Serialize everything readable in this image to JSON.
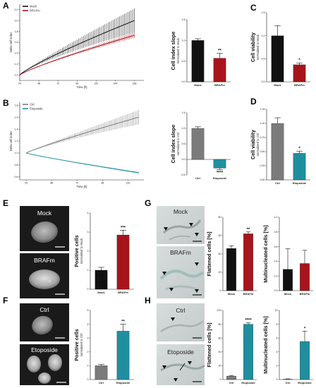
{
  "colors": {
    "black": "#111111",
    "red": "#a8141c",
    "grey": "#7b7b7b",
    "teal": "#1f8fa0"
  },
  "panels": {
    "A": {
      "letter": "A",
      "legend": [
        "Mock",
        "BRAFm"
      ],
      "y_title": "Delta cell index",
      "x_title": "Time [h]",
      "y_ticks": [
        "1.0",
        "1.2",
        "1.4",
        "1.6",
        "1.8",
        "2.0",
        "2.2"
      ],
      "x_ticks": [
        "24",
        "48",
        "72",
        "96",
        "120",
        "144",
        "168"
      ]
    },
    "A_bar": {
      "ylabel": "Cell index slope",
      "ysub": "normalized to Mock",
      "y_ticks": [
        "0.0",
        "0.5",
        "1.0",
        "1.5"
      ],
      "categories": [
        "Mock",
        "BRAFm"
      ],
      "sig": "**"
    },
    "C": {
      "letter": "C",
      "ylabel": "Cell viability",
      "ysub": "normalized to Mock",
      "y_ticks": [
        "0.0",
        "0.5",
        "1.0",
        "1.5"
      ],
      "categories": [
        "Mock",
        "BRAFm"
      ],
      "sig": "*"
    },
    "B": {
      "letter": "B",
      "legend": [
        "Ctrl",
        "Etoposide"
      ],
      "y_title": "Delta cell index",
      "x_title": "Time [h]",
      "y_ticks": [
        "0.6",
        "0.8",
        "1.0",
        "1.2",
        "1.4",
        "1.6",
        "1.8"
      ],
      "x_ticks": [
        "24",
        "48",
        "72",
        "96",
        "120"
      ]
    },
    "B_bar": {
      "ylabel": "Cell index slope",
      "ysub": "normalized to Ctrl",
      "y_ticks": [
        "-0.5",
        "0.0",
        "0.5",
        "1.0",
        "1.5"
      ],
      "categories": [
        "Ctrl",
        "Etoposide"
      ],
      "sig": "****"
    },
    "D": {
      "letter": "D",
      "ylabel": "Cell viability",
      "ysub": "normalized to Ctrl",
      "y_ticks": [
        "0.00",
        "0.25",
        "0.50",
        "0.75",
        "1.00",
        "1.25"
      ],
      "categories": [
        "Ctrl",
        "Etoposide"
      ],
      "sig": "*"
    },
    "E": {
      "letter": "E",
      "img_top": "Mock",
      "img_bottom": "BRAFm",
      "ylabel": "Positive cells",
      "ysub": "normalized to Mock",
      "y_ticks": [
        "0",
        "1",
        "2",
        "3",
        "4"
      ],
      "categories": [
        "Mock",
        "BRAFm"
      ],
      "sig": "***"
    },
    "F": {
      "letter": "F",
      "img_top": "Ctrl",
      "img_bottom": "Etoposide",
      "ylabel": "Positive cells",
      "ysub": "normalized to Ctrl",
      "y_ticks": [
        "0",
        "1",
        "2",
        "3",
        "4",
        "5"
      ],
      "categories": [
        "Ctrl",
        "Etoposide"
      ],
      "sig": "**"
    },
    "G": {
      "letter": "G",
      "img_top": "Mock",
      "img_bottom": "BRAFm",
      "flat_ylabel": "Flattened cells [%]",
      "flat_ticks": [
        "0",
        "20",
        "40",
        "60",
        "80"
      ],
      "multi_ylabel": "Multinucleated cells [%]",
      "multi_ticks": [
        "0.0",
        "0.2",
        "0.4",
        "0.6",
        "0.8",
        "1.0"
      ],
      "categories": [
        "Mock",
        "BRAFm"
      ],
      "sig": "**"
    },
    "H": {
      "letter": "H",
      "img_top": "Ctrl",
      "img_bottom": "Etoposide",
      "flat_ylabel": "Flattened cells [%]",
      "flat_ticks": [
        "0",
        "20",
        "40",
        "60",
        "80",
        "100"
      ],
      "multi_ylabel": "Multinucleated cells [%]",
      "multi_ticks": [
        "0",
        "2",
        "4",
        "6",
        "8",
        "10"
      ],
      "categories": [
        "Ctrl",
        "Etoposide"
      ],
      "sig_flat": "****",
      "sig_multi": "*"
    }
  },
  "chart_data": [
    {
      "type": "line",
      "name": "A",
      "x": [
        24,
        168
      ],
      "xlim": [
        24,
        180
      ],
      "ylim": [
        0.9,
        2.3
      ],
      "series": [
        {
          "name": "Mock",
          "start": 1.0,
          "end": 2.0,
          "spread_end": 0.22
        },
        {
          "name": "BRAFm",
          "start": 1.0,
          "end": 1.73,
          "spread_end": 0.05
        }
      ]
    },
    {
      "type": "bar",
      "name": "A_bar",
      "categories": [
        "Mock",
        "BRAFm"
      ],
      "values": [
        1.0,
        0.57
      ],
      "errors": [
        0.04,
        0.12
      ],
      "ylim": [
        0,
        1.5
      ]
    },
    {
      "type": "bar",
      "name": "C",
      "categories": [
        "Mock",
        "BRAFm"
      ],
      "values": [
        1.0,
        0.37
      ],
      "errors": [
        0.22,
        0.04
      ],
      "ylim": [
        0,
        1.5
      ]
    },
    {
      "type": "line",
      "name": "B",
      "x": [
        24,
        130
      ],
      "xlim": [
        18,
        135
      ],
      "ylim": [
        0.55,
        1.85
      ],
      "series": [
        {
          "name": "Ctrl",
          "start": 1.0,
          "end": 1.6,
          "spread_end": 0.12
        },
        {
          "name": "Etoposide",
          "start": 1.0,
          "end": 0.67,
          "spread_end": 0.02
        }
      ]
    },
    {
      "type": "bar",
      "name": "B_bar",
      "categories": [
        "Ctrl",
        "Etoposide"
      ],
      "values": [
        1.0,
        -0.28
      ],
      "errors": [
        0.05,
        0.05
      ],
      "ylim": [
        -0.5,
        1.5
      ]
    },
    {
      "type": "bar",
      "name": "D",
      "categories": [
        "Ctrl",
        "Etoposide"
      ],
      "values": [
        1.0,
        0.47
      ],
      "errors": [
        0.1,
        0.04
      ],
      "ylim": [
        0,
        1.25
      ]
    },
    {
      "type": "bar",
      "name": "E",
      "categories": [
        "Mock",
        "BRAFm"
      ],
      "values": [
        1.0,
        2.85
      ],
      "errors": [
        0.15,
        0.25
      ],
      "ylim": [
        0,
        4
      ]
    },
    {
      "type": "bar",
      "name": "G_flat",
      "categories": [
        "Mock",
        "BRAFm"
      ],
      "values": [
        46,
        62
      ],
      "errors": [
        3,
        2
      ],
      "ylim": [
        0,
        80
      ]
    },
    {
      "type": "bar",
      "name": "G_multi",
      "categories": [
        "Mock",
        "BRAFm"
      ],
      "values": [
        0.29,
        0.37
      ],
      "errors": [
        0.28,
        0.18
      ],
      "ylim": [
        0,
        1.0
      ]
    },
    {
      "type": "bar",
      "name": "F",
      "categories": [
        "Ctrl",
        "Etoposide"
      ],
      "values": [
        1.0,
        3.5
      ],
      "errors": [
        0.1,
        0.5
      ],
      "ylim": [
        0,
        5
      ]
    },
    {
      "type": "bar",
      "name": "H_flat",
      "categories": [
        "Ctrl",
        "Etoposide"
      ],
      "values": [
        5,
        80
      ],
      "errors": [
        1,
        2
      ],
      "ylim": [
        0,
        100
      ]
    },
    {
      "type": "bar",
      "name": "H_multi",
      "categories": [
        "Ctrl",
        "Etoposide"
      ],
      "values": [
        0.05,
        5.5
      ],
      "errors": [
        0.05,
        1.5
      ],
      "ylim": [
        0,
        10
      ]
    }
  ]
}
